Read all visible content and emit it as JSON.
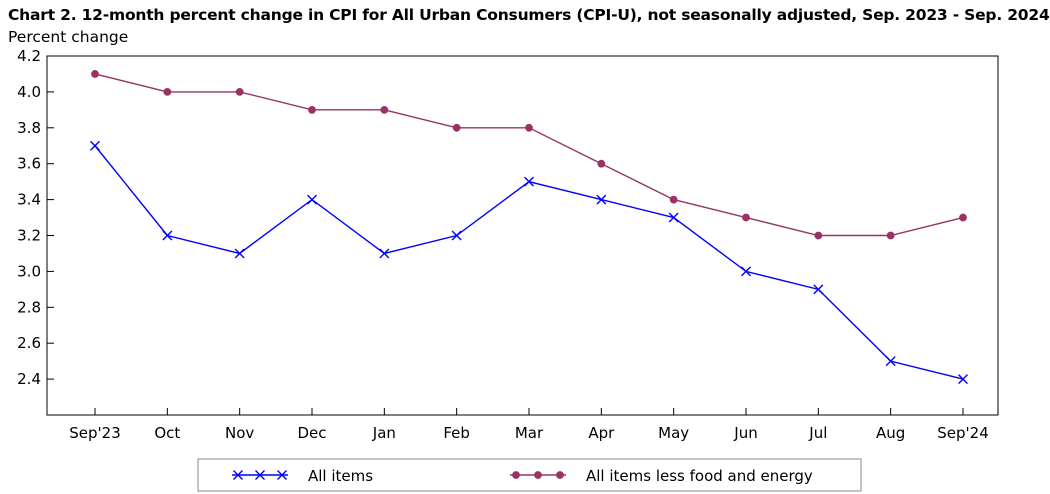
{
  "chart_data": {
    "type": "line",
    "title": "Chart 2. 12-month percent change in CPI for All Urban Consumers (CPI-U), not seasonally adjusted, Sep. 2023 - Sep. 2024",
    "ylabel": "Percent change",
    "xlabel": "",
    "ylim": [
      2.2,
      4.2
    ],
    "yticks": [
      "2.4",
      "2.6",
      "2.8",
      "3.0",
      "3.2",
      "3.4",
      "3.6",
      "3.8",
      "4.0",
      "4.2"
    ],
    "categories": [
      "Sep'23",
      "Oct",
      "Nov",
      "Dec",
      "Jan",
      "Feb",
      "Mar",
      "Apr",
      "May",
      "Jun",
      "Jul",
      "Aug",
      "Sep'24"
    ],
    "series": [
      {
        "name": "All items",
        "color": "#0000ff",
        "marker": "x",
        "values": [
          3.7,
          3.2,
          3.1,
          3.4,
          3.1,
          3.2,
          3.5,
          3.4,
          3.3,
          3.0,
          2.9,
          2.5,
          2.4
        ]
      },
      {
        "name": "All items less food and energy",
        "color": "#993366",
        "marker": "circle",
        "values": [
          4.1,
          4.0,
          4.0,
          3.9,
          3.9,
          3.8,
          3.8,
          3.6,
          3.4,
          3.3,
          3.2,
          3.2,
          3.3
        ]
      }
    ],
    "grid": false,
    "legend": "bottom"
  }
}
